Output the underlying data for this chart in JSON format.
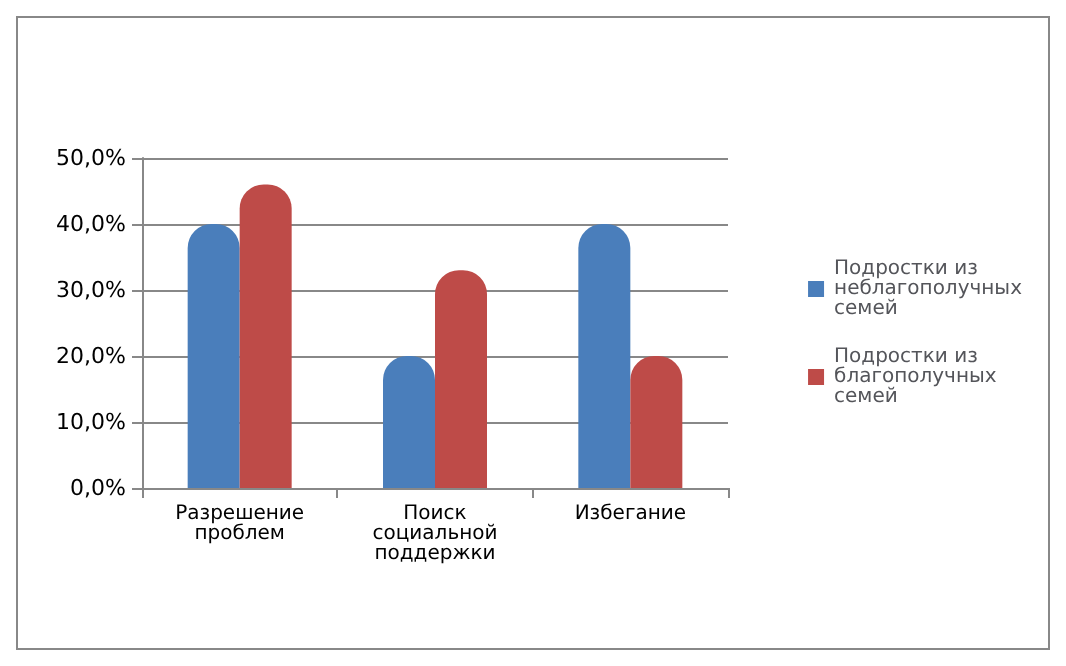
{
  "chart_data": {
    "type": "bar",
    "categories": [
      "Разрешение проблем",
      "Поиск социальной поддержки",
      "Избегание"
    ],
    "series": [
      {
        "name": "Подростки из неблагополучных семей",
        "color": "#4a7ebb",
        "values": [
          40,
          20,
          40
        ]
      },
      {
        "name": "Подростки из благополучных семей",
        "color": "#be4b48",
        "values": [
          46,
          33,
          20
        ]
      }
    ],
    "ylim": [
      0,
      50
    ],
    "yticks": [
      {
        "value": 0,
        "label": "0,0%"
      },
      {
        "value": 10,
        "label": "10,0%"
      },
      {
        "value": 20,
        "label": "20,0%"
      },
      {
        "value": 30,
        "label": "30,0%"
      },
      {
        "value": 40,
        "label": "40,0%"
      },
      {
        "value": 50,
        "label": "50,0%"
      }
    ],
    "grid": "y",
    "legend": "right"
  }
}
